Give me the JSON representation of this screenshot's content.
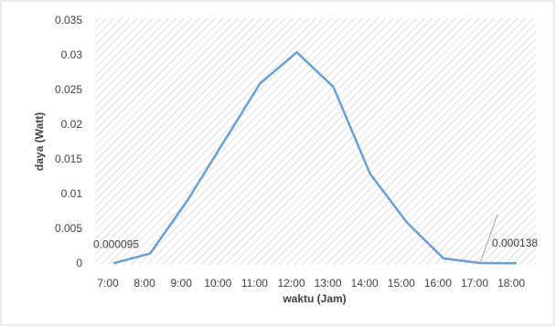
{
  "chart_data": {
    "type": "line",
    "x_label": "waktu (Jam)",
    "y_label": "daya (Watt)",
    "categories": [
      "7:00",
      "8:00",
      "9:00",
      "10:00",
      "11:00",
      "12:00",
      "13:00",
      "14:00",
      "15:00",
      "16:00",
      "17:00",
      "18:00"
    ],
    "series": [
      {
        "name": null,
        "color": "#6a9fd0",
        "values": [
          9.5e-05,
          0.0015,
          0.009,
          0.0175,
          0.026,
          0.0305,
          0.0255,
          0.013,
          0.006,
          0.0008,
          0.000138,
          0.0001
        ],
        "value_labels": [
          "0.000095",
          null,
          null,
          null,
          null,
          null,
          null,
          null,
          null,
          null,
          "0.000138",
          null
        ]
      }
    ],
    "ylim": [
      0,
      0.035
    ],
    "yticks": [
      0,
      0.005,
      0.01,
      0.015,
      0.02,
      0.025,
      0.03,
      0.035
    ],
    "grid": false
  }
}
